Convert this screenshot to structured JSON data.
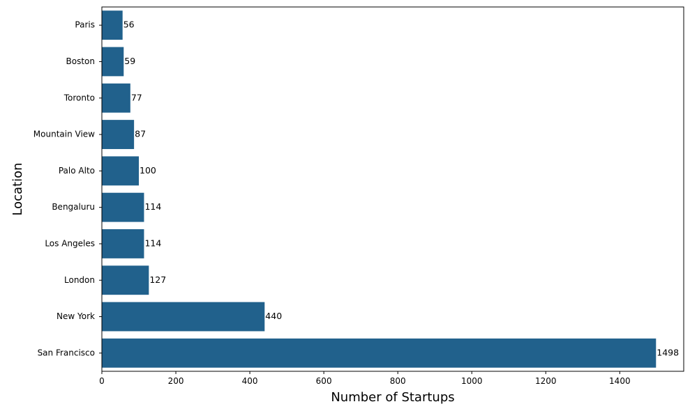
{
  "chart_data": {
    "type": "bar",
    "orientation": "horizontal",
    "title": "",
    "xlabel": "Number of Startups",
    "ylabel": "Location",
    "categories": [
      "San Francisco",
      "New York",
      "London",
      "Los Angeles",
      "Bengaluru",
      "Palo Alto",
      "Mountain View",
      "Toronto",
      "Boston",
      "Paris"
    ],
    "values": [
      1498,
      440,
      127,
      114,
      114,
      100,
      87,
      77,
      59,
      56
    ],
    "data_labels": [
      "1498",
      "440",
      "127",
      "114",
      "114",
      "100",
      "87",
      "77",
      "59",
      "56"
    ],
    "xlim": [
      0,
      1572.9
    ],
    "xticks": [
      0,
      200,
      400,
      600,
      800,
      1000,
      1200,
      1400
    ],
    "xtick_labels": [
      "0",
      "200",
      "400",
      "600",
      "800",
      "1000",
      "1200",
      "1400"
    ],
    "grid": false,
    "legend": "none",
    "bar_color": "#21618c"
  }
}
